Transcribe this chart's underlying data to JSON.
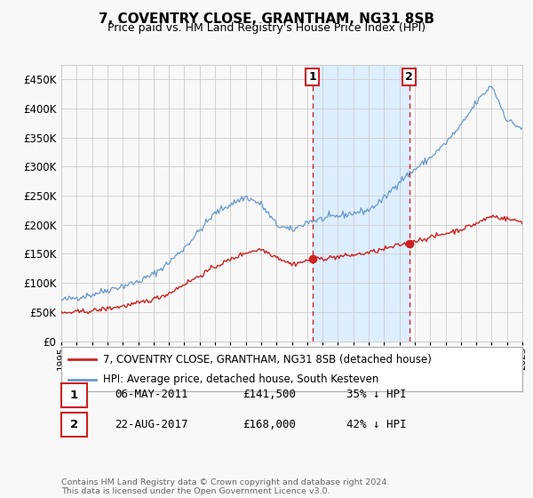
{
  "title": "7, COVENTRY CLOSE, GRANTHAM, NG31 8SB",
  "subtitle": "Price paid vs. HM Land Registry's House Price Index (HPI)",
  "legend_line1": "7, COVENTRY CLOSE, GRANTHAM, NG31 8SB (detached house)",
  "legend_line2": "HPI: Average price, detached house, South Kesteven",
  "transaction1_date": "06-MAY-2011",
  "transaction1_price": "£141,500",
  "transaction1_hpi": "35% ↓ HPI",
  "transaction2_date": "22-AUG-2017",
  "transaction2_price": "£168,000",
  "transaction2_hpi": "42% ↓ HPI",
  "footer": "Contains HM Land Registry data © Crown copyright and database right 2024.\nThis data is licensed under the Open Government Licence v3.0.",
  "hpi_color": "#6699cc",
  "price_color": "#cc2222",
  "background_color": "#f8f8f8",
  "plot_bg_color": "#f8f8f8",
  "shaded_region_color": "#ddeeff",
  "grid_color": "#cccccc",
  "ylim": [
    0,
    475000
  ],
  "yticks": [
    0,
    50000,
    100000,
    150000,
    200000,
    250000,
    300000,
    350000,
    400000,
    450000
  ],
  "transaction1_x": 2011.35,
  "transaction2_x": 2017.64,
  "transaction1_y": 141500,
  "transaction2_y": 168000,
  "xmin": 1995,
  "xmax": 2025
}
